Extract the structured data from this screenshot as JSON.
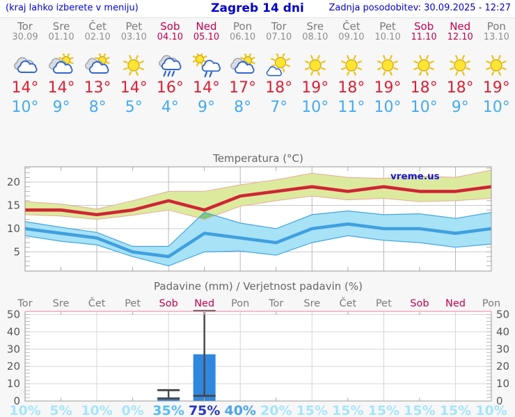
{
  "header": {
    "left_note": "(kraj lahko izberete v meniju)",
    "title": "Zagreb 14 dni",
    "updated": "Zadnja posodobitev: 30.09.2025 - 12:27"
  },
  "colors": {
    "link_blue": "#0000cc",
    "weekend_red": "#c0004e",
    "tmax_red": "#dd1f33",
    "tmin_blue": "#44abed",
    "max_line": "#d02535",
    "max_band": "#dcea9e",
    "max_band_edge": "#e9a899",
    "min_line": "#3fa0e0",
    "min_band": "#a8e2f6",
    "min_band_edge": "#42a5e0",
    "overlap_green": "#7dc87d",
    "bar_blue": "#2f87e0",
    "whisker_gray": "#4a4a4a",
    "pink_axis": "#f0a8bd",
    "axis_gray": "#999999",
    "title_gray": "#666666"
  },
  "days": [
    {
      "name": "Tor",
      "date": "30.09",
      "weekend": false,
      "icon": "cloudy",
      "tmax": "14°",
      "tmin": "10°"
    },
    {
      "name": "Sre",
      "date": "01.10",
      "weekend": false,
      "icon": "partly-cloudy",
      "tmax": "14°",
      "tmin": "9°"
    },
    {
      "name": "Čet",
      "date": "02.10",
      "weekend": false,
      "icon": "partly-cloudy",
      "tmax": "13°",
      "tmin": "8°"
    },
    {
      "name": "Pet",
      "date": "03.10",
      "weekend": false,
      "icon": "sunny",
      "tmax": "14°",
      "tmin": "5°"
    },
    {
      "name": "Sob",
      "date": "04.10",
      "weekend": true,
      "icon": "rain",
      "tmax": "16°",
      "tmin": "4°"
    },
    {
      "name": "Ned",
      "date": "05.10",
      "weekend": true,
      "icon": "sun-rain",
      "tmax": "14°",
      "tmin": "9°"
    },
    {
      "name": "Pon",
      "date": "06.10",
      "weekend": false,
      "icon": "partly-cloudy",
      "tmax": "17°",
      "tmin": "8°"
    },
    {
      "name": "Tor",
      "date": "07.10",
      "weekend": false,
      "icon": "mostly-sunny",
      "tmax": "18°",
      "tmin": "7°"
    },
    {
      "name": "Sre",
      "date": "08.10",
      "weekend": false,
      "icon": "sunny",
      "tmax": "19°",
      "tmin": "10°"
    },
    {
      "name": "Čet",
      "date": "09.10",
      "weekend": false,
      "icon": "sunny",
      "tmax": "18°",
      "tmin": "11°"
    },
    {
      "name": "Pet",
      "date": "10.10",
      "weekend": false,
      "icon": "sunny",
      "tmax": "19°",
      "tmin": "10°"
    },
    {
      "name": "Sob",
      "date": "11.10",
      "weekend": true,
      "icon": "sunny",
      "tmax": "18°",
      "tmin": "10°"
    },
    {
      "name": "Ned",
      "date": "12.10",
      "weekend": true,
      "icon": "sunny",
      "tmax": "18°",
      "tmin": "9°"
    },
    {
      "name": "Pon",
      "date": "13.10",
      "weekend": false,
      "icon": "sunny",
      "tmax": "19°",
      "tmin": "10°"
    }
  ],
  "chart_data": [
    {
      "type": "line",
      "title": "Temperatura (°C)",
      "watermark": "vreme.us",
      "categories": [
        "Tor",
        "Sre",
        "Čet",
        "Pet",
        "Sob",
        "Ned",
        "Pon",
        "Tor",
        "Sre",
        "Čet",
        "Pet",
        "Sob",
        "Ned",
        "Pon"
      ],
      "ylim": [
        1,
        23.3
      ],
      "yticks": [
        5,
        10,
        15,
        20
      ],
      "grid": true,
      "series": [
        {
          "name": "max temperature",
          "values": [
            14,
            14,
            13,
            14,
            16,
            14,
            17,
            18,
            19,
            18,
            19,
            18,
            18,
            19
          ],
          "band_upper": [
            15.8,
            15.3,
            14.2,
            16,
            18,
            18,
            19.4,
            20.5,
            21.9,
            21,
            20.8,
            21.3,
            21,
            22.6
          ],
          "band_lower": [
            13,
            12.7,
            12,
            12.9,
            14,
            12,
            14.8,
            16,
            17,
            16.2,
            16.5,
            15.8,
            16,
            16.5
          ]
        },
        {
          "name": "min temperature",
          "values": [
            10,
            9,
            8,
            5,
            4,
            9,
            8,
            7,
            10,
            11,
            10,
            10,
            9,
            10
          ],
          "band_upper": [
            11.5,
            10.3,
            9.2,
            6.2,
            6.2,
            13.5,
            11.2,
            10,
            13,
            13.8,
            13,
            13.2,
            12.2,
            13.5
          ],
          "band_lower": [
            8.5,
            7.3,
            6.5,
            4,
            2,
            5,
            5.2,
            4.3,
            7,
            8.5,
            7.5,
            7,
            6,
            6.7
          ]
        }
      ]
    },
    {
      "type": "bar",
      "title": "Padavine (mm) / Verjetnost padavin (%)",
      "categories": [
        "Tor",
        "Sre",
        "Čet",
        "Pet",
        "Sob",
        "Ned",
        "Pon",
        "Tor",
        "Sre",
        "Čet",
        "Pet",
        "Sob",
        "Ned",
        "Pon"
      ],
      "values": [
        0,
        0,
        0,
        0,
        1.5,
        27,
        0,
        0,
        0,
        0,
        0,
        0,
        0,
        0
      ],
      "whisker_low": [
        null,
        null,
        null,
        null,
        1.5,
        3,
        null,
        null,
        null,
        null,
        null,
        null,
        null,
        null
      ],
      "whisker_high": [
        null,
        null,
        null,
        null,
        6.3,
        52,
        null,
        null,
        null,
        null,
        null,
        null,
        null,
        null
      ],
      "ylim": [
        0,
        52
      ],
      "yticks": [
        0,
        10,
        20,
        30,
        40,
        50
      ],
      "grid": true,
      "probabilities": [
        {
          "label": "10%",
          "color": "#a5e5fa"
        },
        {
          "label": "5%",
          "color": "#a5e5fa"
        },
        {
          "label": "10%",
          "color": "#a5e5fa"
        },
        {
          "label": "0%",
          "color": "#a5e5fa"
        },
        {
          "label": "35%",
          "color": "#57bdf4"
        },
        {
          "label": "75%",
          "color": "#2a36c5"
        },
        {
          "label": "40%",
          "color": "#4aa4ee"
        },
        {
          "label": "20%",
          "color": "#a5e5fa"
        },
        {
          "label": "15%",
          "color": "#a5e5fa"
        },
        {
          "label": "15%",
          "color": "#a5e5fa"
        },
        {
          "label": "15%",
          "color": "#a5e5fa"
        },
        {
          "label": "15%",
          "color": "#a5e5fa"
        },
        {
          "label": "15%",
          "color": "#a5e5fa"
        },
        {
          "label": "10%",
          "color": "#a5e5fa"
        }
      ]
    }
  ]
}
